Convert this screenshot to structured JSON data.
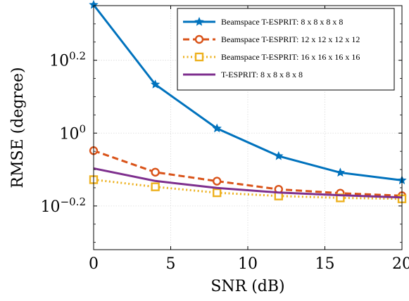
{
  "chart_data": {
    "type": "line",
    "xlabel": "SNR (dB)",
    "ylabel": "RMSE (degree)",
    "xlim": [
      0,
      20
    ],
    "ylim": [
      -0.32,
      0.35
    ],
    "y_scale": "log10",
    "x_ticks": [
      0,
      5,
      10,
      15,
      20
    ],
    "y_ticks": [
      {
        "exp": 0.2,
        "base": "10",
        "sup": "0.2"
      },
      {
        "exp": 0.0,
        "base": "10",
        "sup": "0"
      },
      {
        "exp": -0.2,
        "base": "10",
        "sup": "−0.2"
      }
    ],
    "grid": true,
    "legend_position": "top-right",
    "x": [
      0,
      4,
      8,
      12,
      16,
      20
    ],
    "series": [
      {
        "name": "Beamspace T-ESPRIT: 8 x 8 x 8 x 8",
        "color": "#0072BD",
        "dash": "solid",
        "marker": "star",
        "values": [
          2.25,
          1.36,
          1.03,
          0.865,
          0.779,
          0.742
        ]
      },
      {
        "name": "Beamspace T-ESPRIT: 12 x 12 x 12 x 12",
        "color": "#D95319",
        "dash": "dashed",
        "marker": "circle",
        "values": [
          0.895,
          0.781,
          0.738,
          0.701,
          0.684,
          0.673
        ]
      },
      {
        "name": "Beamspace T-ESPRIT: 16 x 16 x 16 x 16",
        "color": "#EDB120",
        "dash": "dotted",
        "marker": "square",
        "values": [
          0.745,
          0.712,
          0.686,
          0.672,
          0.664,
          0.66
        ]
      },
      {
        "name": "T-ESPRIT: 8 x 8 x 8 x 8",
        "color": "#7E2F8E",
        "dash": "solid",
        "marker": "none",
        "values": [
          0.8,
          0.739,
          0.707,
          0.687,
          0.675,
          0.666
        ]
      }
    ]
  }
}
